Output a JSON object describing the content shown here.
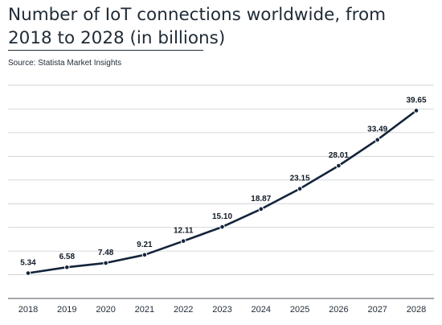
{
  "header": {
    "title": "Number of IoT connections worldwide, from 2018 to 2028 (in billions)",
    "source": "Source: Statista Market Insights"
  },
  "chart_data": {
    "type": "line",
    "title": "Number of IoT connections worldwide, from 2018 to 2028 (in billions)",
    "xlabel": "",
    "ylabel": "",
    "categories": [
      "2018",
      "2019",
      "2020",
      "2021",
      "2022",
      "2023",
      "2024",
      "2025",
      "2026",
      "2027",
      "2028"
    ],
    "series": [
      {
        "values": [
          5.34,
          6.58,
          7.48,
          9.21,
          12.11,
          15.1,
          18.87,
          23.15,
          28.01,
          33.49,
          39.65
        ],
        "labels": [
          "5.34",
          "6.58",
          "7.48",
          "9.21",
          "12.11",
          "15.10",
          "18.87",
          "23.15",
          "28.01",
          "33.49",
          "39.65"
        ]
      }
    ],
    "ylim": [
      0,
      45
    ],
    "grid": true,
    "legend": "none",
    "colors": {
      "line": "#13233a",
      "grid": "#c9ced3"
    }
  }
}
